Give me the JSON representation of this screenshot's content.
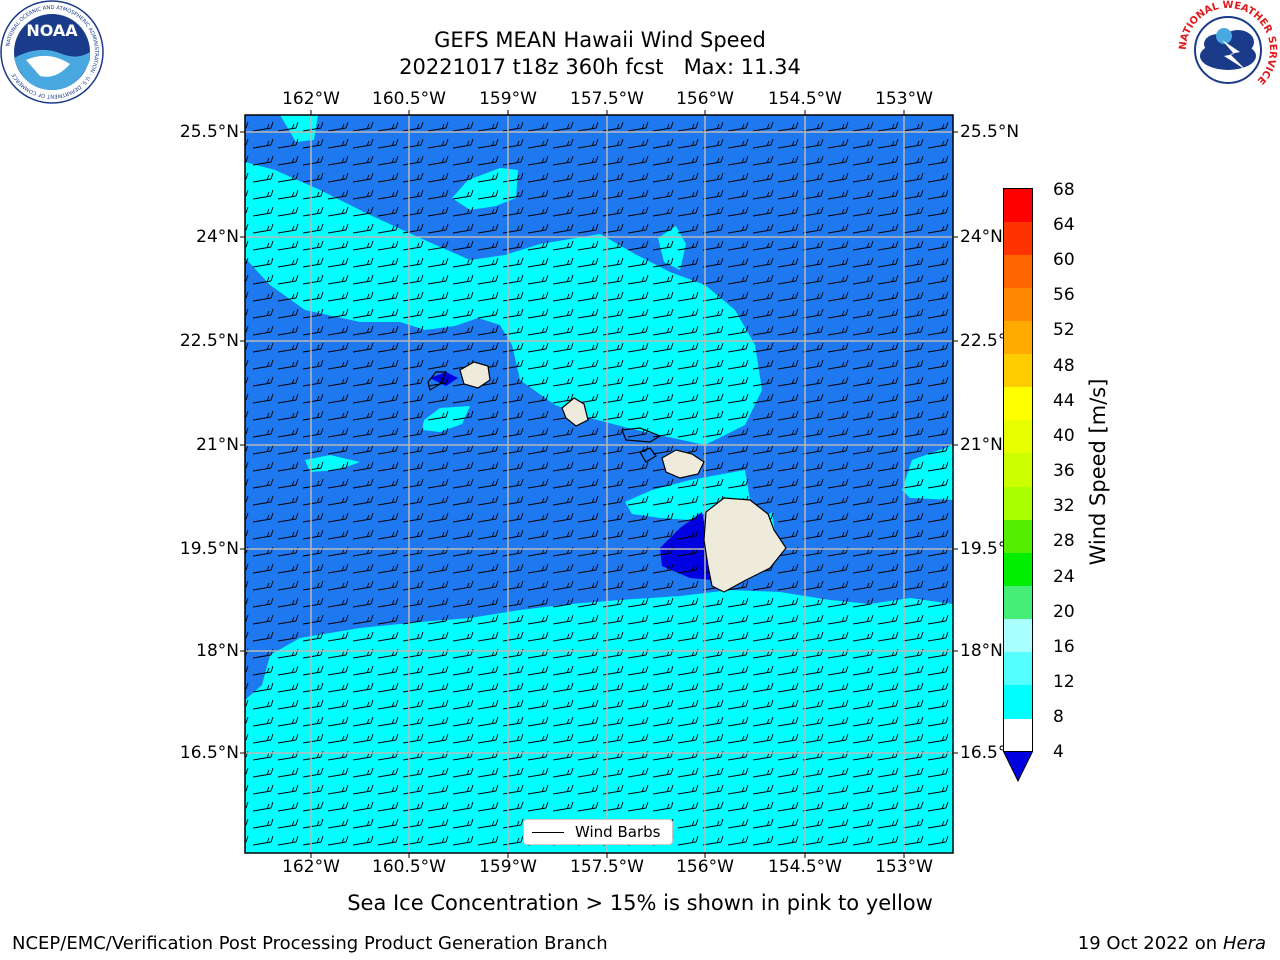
{
  "title": {
    "line1": "GEFS MEAN Hawaii Wind Speed",
    "line2_date": "20221017 t18z 360h fcst",
    "line2_max": "Max: 11.34"
  },
  "logos": {
    "noara_text": "NOAA",
    "noaa_ring": "NATIONAL OCEANIC AND ATMOSPHERIC ADMINISTRATION · U.S. DEPARTMENT OF COMMERCE",
    "nws_ring": "NATIONAL WEATHER SERVICE"
  },
  "map": {
    "lon_labels": [
      "162°W",
      "160.5°W",
      "159°W",
      "157.5°W",
      "156°W",
      "154.5°W",
      "153°W"
    ],
    "lat_labels_left": [
      "25.5°N",
      "24°N",
      "22.5°N",
      "21°N",
      "19.5°N",
      "18°N",
      "16.5°N"
    ],
    "lat_labels_right": [
      "25.5°N",
      "24°N",
      "22.5°N",
      "21°N",
      "19.5°N",
      "18°N",
      "16.5°N"
    ],
    "legend_label": "Wind Barbs",
    "colors": {
      "band_4_8": "#1e78f0",
      "band_8_12": "#00ffff",
      "band_below_4": "#0000e0",
      "land": "#eeeadc"
    }
  },
  "colorbar": {
    "label": "Wind Speed [m/s]",
    "levels": [
      "68",
      "64",
      "60",
      "56",
      "52",
      "48",
      "44",
      "40",
      "36",
      "32",
      "28",
      "24",
      "20",
      "16",
      "12",
      "8",
      "4"
    ],
    "colors": [
      "#ff0000",
      "#ff3300",
      "#ff6600",
      "#ff8800",
      "#ffaa00",
      "#ffcc00",
      "#ffff00",
      "#e8ff00",
      "#ccff00",
      "#aaff00",
      "#55ee00",
      "#00ee00",
      "#44ee77",
      "#aaffff",
      "#55ffff",
      "#00ffff",
      "#1e78f0"
    ],
    "extend_color": "#0000e0"
  },
  "notes": {
    "sea_ice": "Sea Ice Concentration > 15% is shown in pink to yellow"
  },
  "footer": {
    "left": "NCEP/EMC/Verification Post Processing Product Generation Branch",
    "right_date": "19 Oct 2022 on ",
    "right_machine": "Hera"
  }
}
